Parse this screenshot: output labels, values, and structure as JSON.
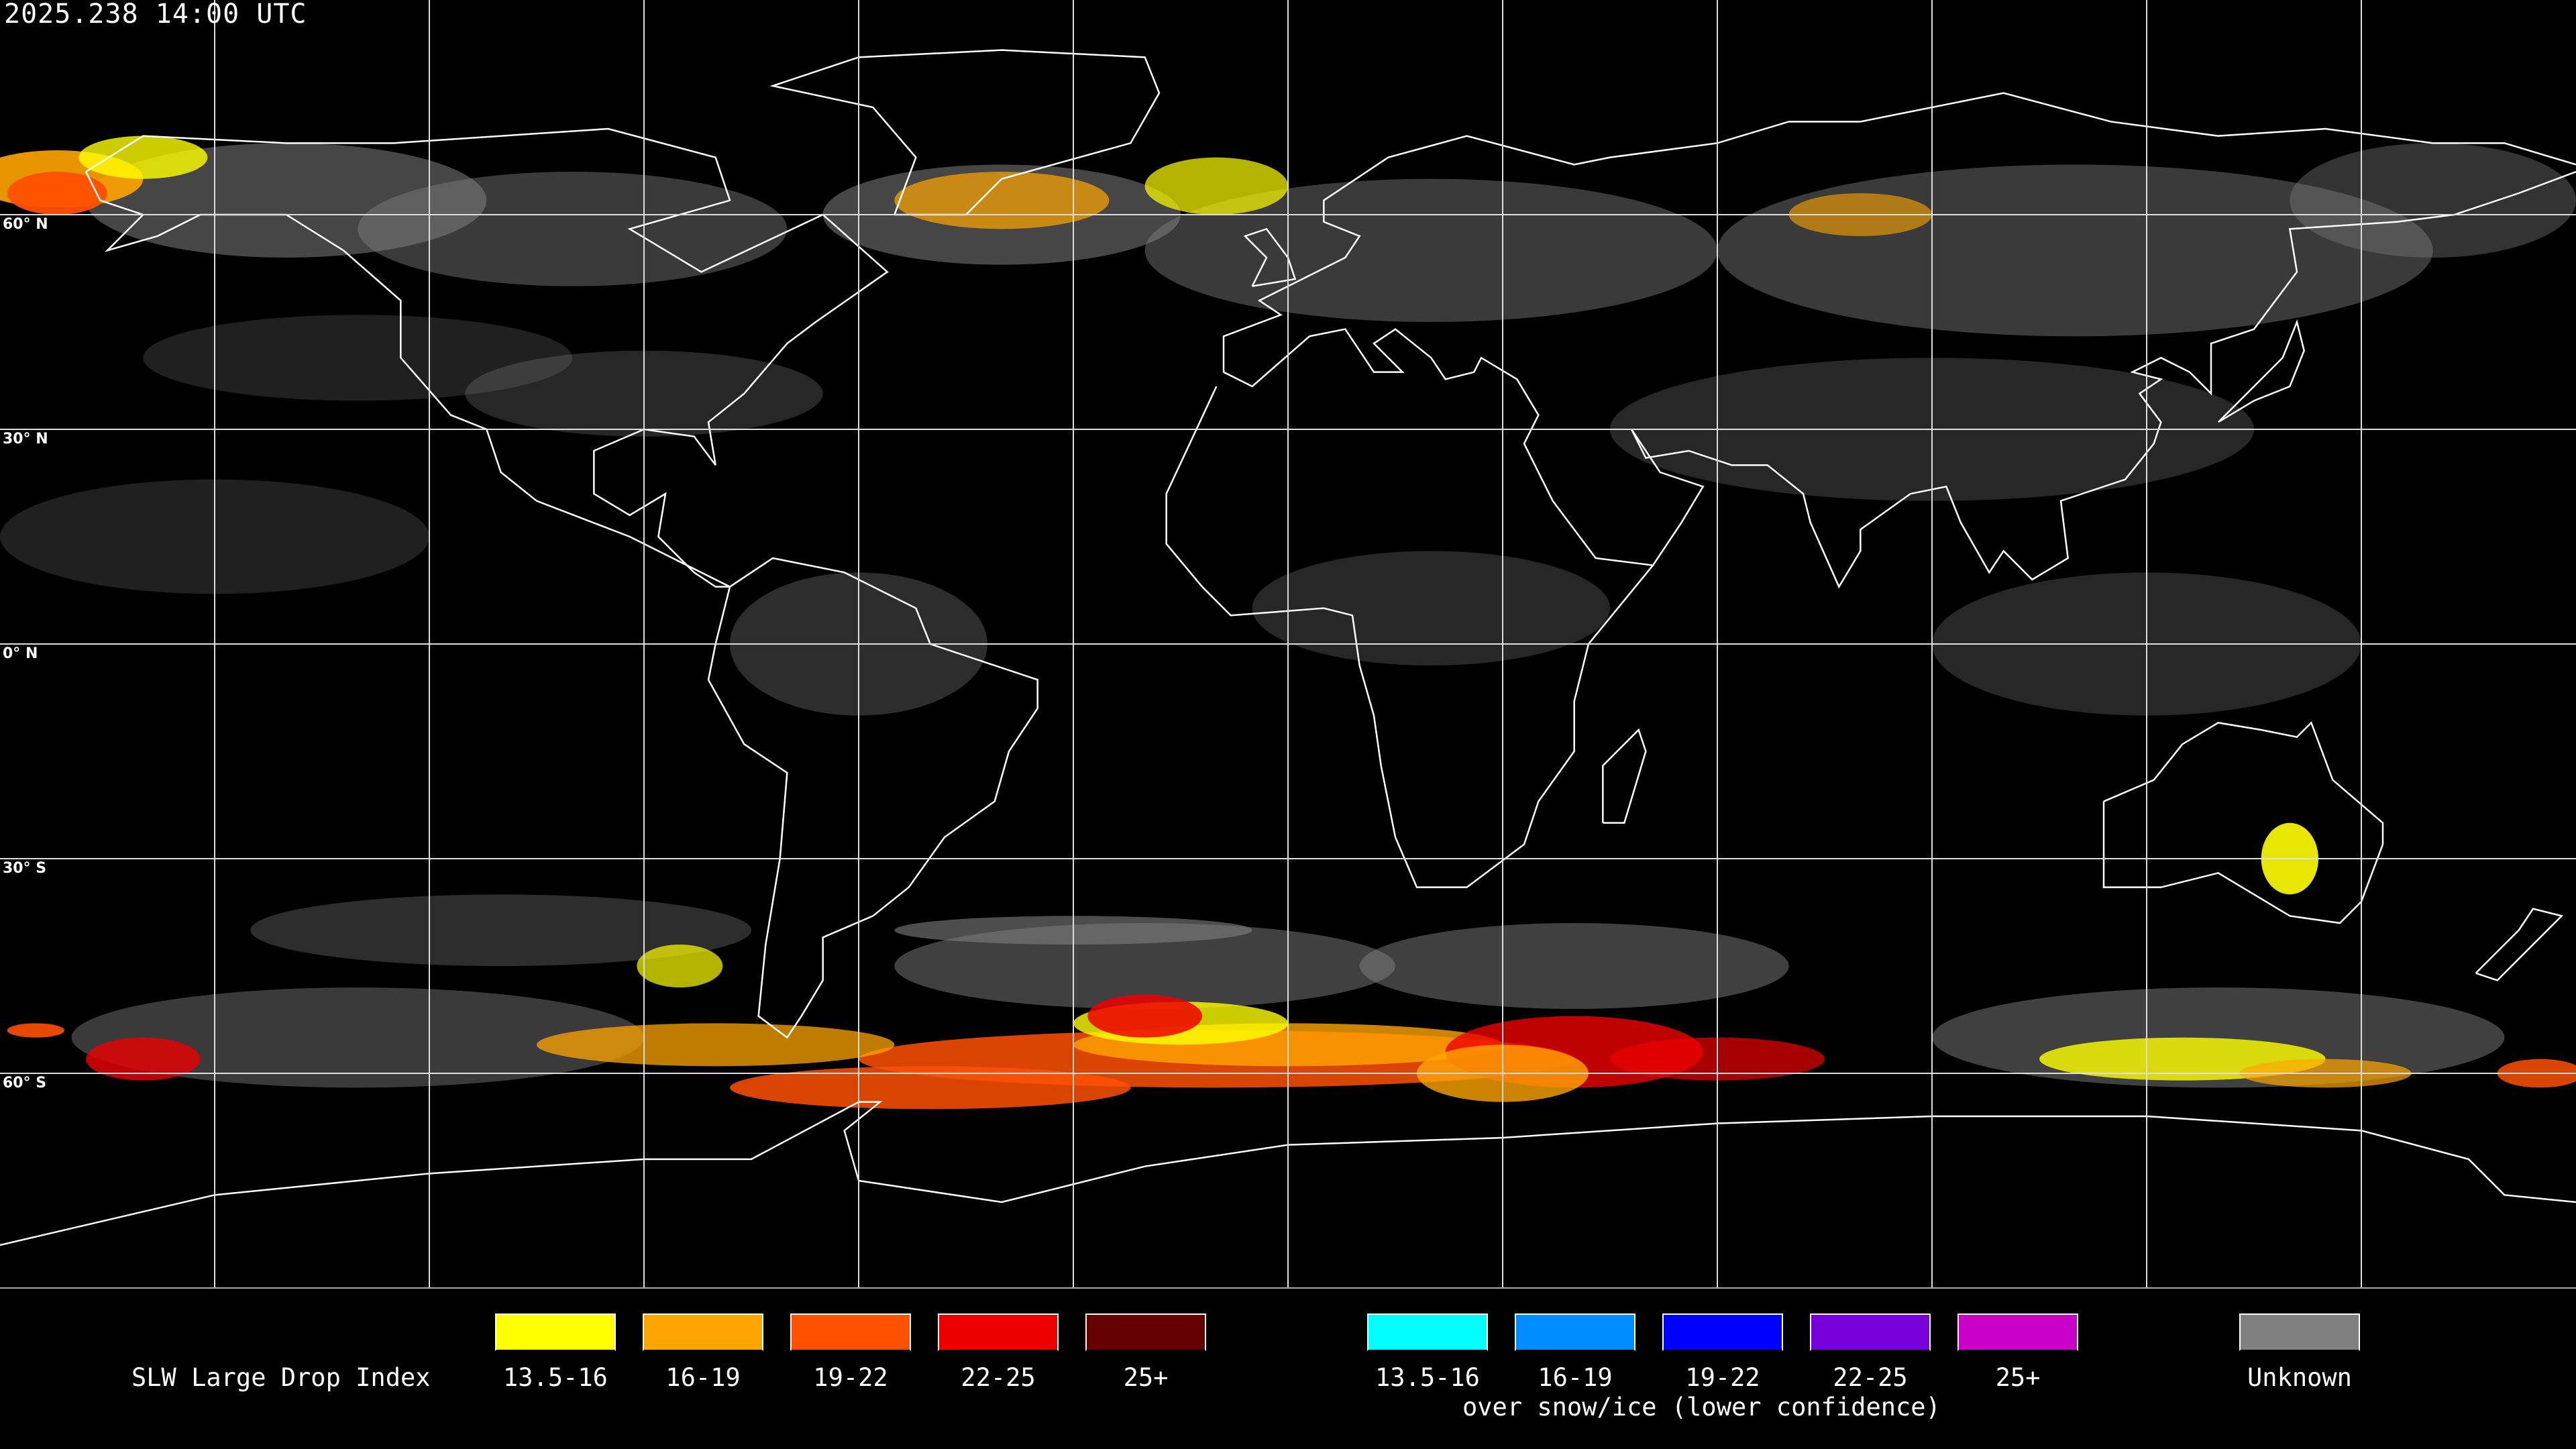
{
  "timestamp": "2025.238 14:00 UTC",
  "latitude_labels": [
    "60° N",
    "30° N",
    "0° N",
    "30° S",
    "60° S"
  ],
  "legend": {
    "title": "SLW Large Drop Index",
    "standard": [
      {
        "label": "13.5-16",
        "color": "#ffff00"
      },
      {
        "label": "16-19",
        "color": "#ffa500"
      },
      {
        "label": "19-22",
        "color": "#ff5000"
      },
      {
        "label": "22-25",
        "color": "#ee0000"
      },
      {
        "label": "25+",
        "color": "#660000"
      }
    ],
    "snow_ice": [
      {
        "label": "13.5-16",
        "color": "#00ffff"
      },
      {
        "label": "16-19",
        "color": "#008cff"
      },
      {
        "label": "19-22",
        "color": "#0000ff"
      },
      {
        "label": "22-25",
        "color": "#7800dc"
      },
      {
        "label": "25+",
        "color": "#c800c8"
      }
    ],
    "snow_ice_caption": "over snow/ice (lower confidence)",
    "unknown": {
      "label": "Unknown",
      "color": "#808080"
    }
  }
}
